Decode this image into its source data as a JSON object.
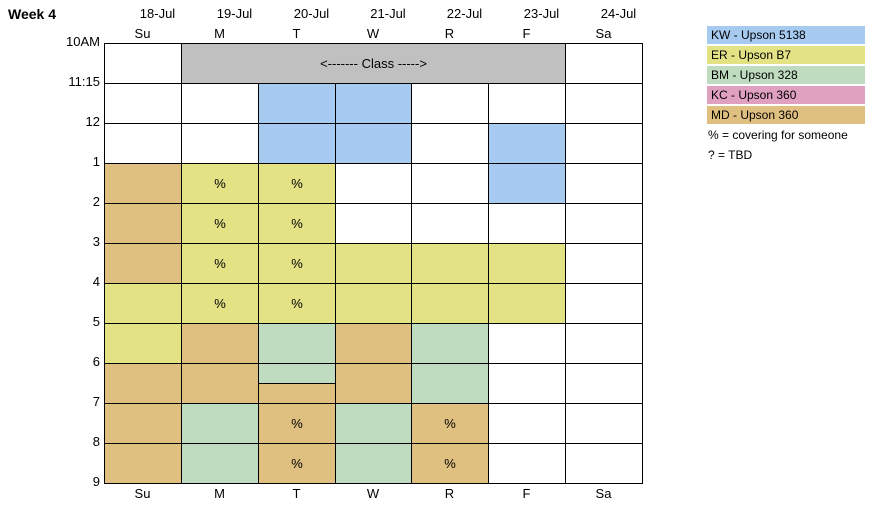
{
  "header": {
    "week": "Week 4",
    "dates": [
      "18-Jul",
      "19-Jul",
      "20-Jul",
      "21-Jul",
      "22-Jul",
      "23-Jul",
      "24-Jul"
    ],
    "days": [
      "Su",
      "M",
      "T",
      "W",
      "R",
      "F",
      "Sa"
    ]
  },
  "times": [
    "10AM",
    "11:15",
    "12",
    "1",
    "2",
    "3",
    "4",
    "5",
    "6",
    "7",
    "8",
    "9"
  ],
  "schedule": {
    "rows": [
      [
        {
          "fill": "#ffffff"
        },
        {
          "fill": "#c0c0c0",
          "text": "<------- Class ----->",
          "span": 5
        },
        {
          "fill": "#ffffff"
        }
      ],
      [
        {
          "fill": "#ffffff"
        },
        {
          "fill": "#ffffff"
        },
        {
          "fill": "#a6caf0"
        },
        {
          "fill": "#a6caf0"
        },
        {
          "fill": "#ffffff"
        },
        {
          "fill": "#ffffff"
        },
        {
          "fill": "#ffffff"
        }
      ],
      [
        {
          "fill": "#ffffff"
        },
        {
          "fill": "#ffffff"
        },
        {
          "fill": "#a6caf0"
        },
        {
          "fill": "#a6caf0"
        },
        {
          "fill": "#ffffff"
        },
        {
          "fill": "#a6caf0"
        },
        {
          "fill": "#ffffff"
        }
      ],
      [
        {
          "fill": "#e0c080"
        },
        {
          "fill": "#e3e386",
          "text": "%"
        },
        {
          "fill": "#e3e386",
          "text": "%"
        },
        {
          "fill": "#ffffff"
        },
        {
          "fill": "#ffffff"
        },
        {
          "fill": "#a6caf0"
        },
        {
          "fill": "#ffffff"
        }
      ],
      [
        {
          "fill": "#e0c080"
        },
        {
          "fill": "#e3e386",
          "text": "%"
        },
        {
          "fill": "#e3e386",
          "text": "%"
        },
        {
          "fill": "#ffffff"
        },
        {
          "fill": "#ffffff"
        },
        {
          "fill": "#ffffff"
        },
        {
          "fill": "#ffffff"
        }
      ],
      [
        {
          "fill": "#e0c080"
        },
        {
          "fill": "#e3e386",
          "text": "%"
        },
        {
          "fill": "#e3e386",
          "text": "%"
        },
        {
          "fill": "#e3e386"
        },
        {
          "fill": "#e3e386"
        },
        {
          "fill": "#e3e386"
        },
        {
          "fill": "#ffffff"
        }
      ],
      [
        {
          "fill": "#e3e386"
        },
        {
          "fill": "#e3e386",
          "text": "%"
        },
        {
          "fill": "#e3e386",
          "text": "%"
        },
        {
          "fill": "#e3e386"
        },
        {
          "fill": "#e3e386"
        },
        {
          "fill": "#e3e386"
        },
        {
          "fill": "#ffffff"
        }
      ],
      [
        {
          "fill": "#e3e386"
        },
        {
          "fill": "#e0c080"
        },
        {
          "fill": "#c0dcc0"
        },
        {
          "fill": "#e0c080"
        },
        {
          "fill": "#c0dcc0"
        },
        {
          "fill": "#ffffff"
        },
        {
          "fill": "#ffffff"
        }
      ],
      [
        {
          "fill": "#e0c080"
        },
        {
          "fill": "#e0c080"
        },
        {
          "fill": "#c0dcc0",
          "fill_lower": "#e0c080"
        },
        {
          "fill": "#e0c080"
        },
        {
          "fill": "#c0dcc0"
        },
        {
          "fill": "#ffffff"
        },
        {
          "fill": "#ffffff"
        }
      ],
      [
        {
          "fill": "#e0c080"
        },
        {
          "fill": "#c0dcc0"
        },
        {
          "fill": "#e0c080",
          "text": "%"
        },
        {
          "fill": "#c0dcc0"
        },
        {
          "fill": "#e0c080",
          "text": "%"
        },
        {
          "fill": "#ffffff"
        },
        {
          "fill": "#ffffff"
        }
      ],
      [
        {
          "fill": "#e0c080"
        },
        {
          "fill": "#c0dcc0"
        },
        {
          "fill": "#e0c080",
          "text": "%"
        },
        {
          "fill": "#c0dcc0"
        },
        {
          "fill": "#e0c080",
          "text": "%"
        },
        {
          "fill": "#ffffff"
        },
        {
          "fill": "#ffffff"
        }
      ]
    ]
  },
  "legend": [
    {
      "label": "KW - Upson 5138",
      "color": "#a6caf0"
    },
    {
      "label": "ER - Upson B7",
      "color": "#e3e386"
    },
    {
      "label": "BM - Upson 328",
      "color": "#c0dcc0"
    },
    {
      "label": "KC - Upson 360",
      "color": "#e0a0c0"
    },
    {
      "label": "MD - Upson 360",
      "color": "#e0c080"
    }
  ],
  "notes": [
    "% = covering for someone",
    "? = TBD"
  ]
}
